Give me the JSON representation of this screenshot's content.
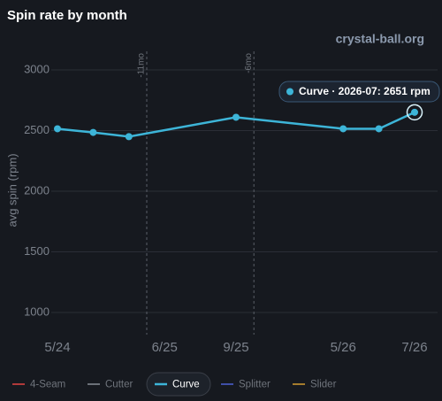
{
  "chart_data": {
    "type": "line",
    "title": "Spin rate by month",
    "watermark": "crystal-ball.org",
    "y_label": "avg spin (rpm)",
    "categories": [
      "5/24",
      null,
      null,
      "6/25",
      null,
      "9/25",
      null,
      null,
      "5/26",
      null,
      "7/26"
    ],
    "series": [
      {
        "name": "4-Seam",
        "color": "#b03a3a",
        "visible": false,
        "values": [
          null,
          null,
          null,
          null,
          null,
          null,
          null,
          null,
          null,
          null,
          null
        ]
      },
      {
        "name": "Cutter",
        "color": "#6b7078",
        "visible": false,
        "values": [
          null,
          null,
          null,
          null,
          null,
          null,
          null,
          null,
          null,
          null,
          null
        ]
      },
      {
        "name": "Curve",
        "color": "#3db5d8",
        "visible": true,
        "values": [
          2515,
          2485,
          2450,
          null,
          null,
          2610,
          null,
          null,
          2515,
          2515,
          2651
        ]
      },
      {
        "name": "Splitter",
        "color": "#3f4fa8",
        "visible": false,
        "values": [
          null,
          null,
          null,
          null,
          null,
          null,
          null,
          null,
          null,
          null,
          null
        ]
      },
      {
        "name": "Slider",
        "color": "#a57c2c",
        "visible": false,
        "values": [
          null,
          null,
          null,
          null,
          null,
          null,
          null,
          null,
          null,
          null,
          null
        ]
      }
    ],
    "span_gaps": true,
    "ylim": [
      850,
      3150
    ],
    "yticks": [
      1000,
      1500,
      2000,
      2500,
      3000
    ],
    "grid": true,
    "markers": [
      {
        "at": 2.5,
        "label": "-11mo"
      },
      {
        "at": 5.5,
        "label": "-6mo"
      }
    ],
    "tooltip": "Curve · 2026-07: 2651 rpm"
  }
}
